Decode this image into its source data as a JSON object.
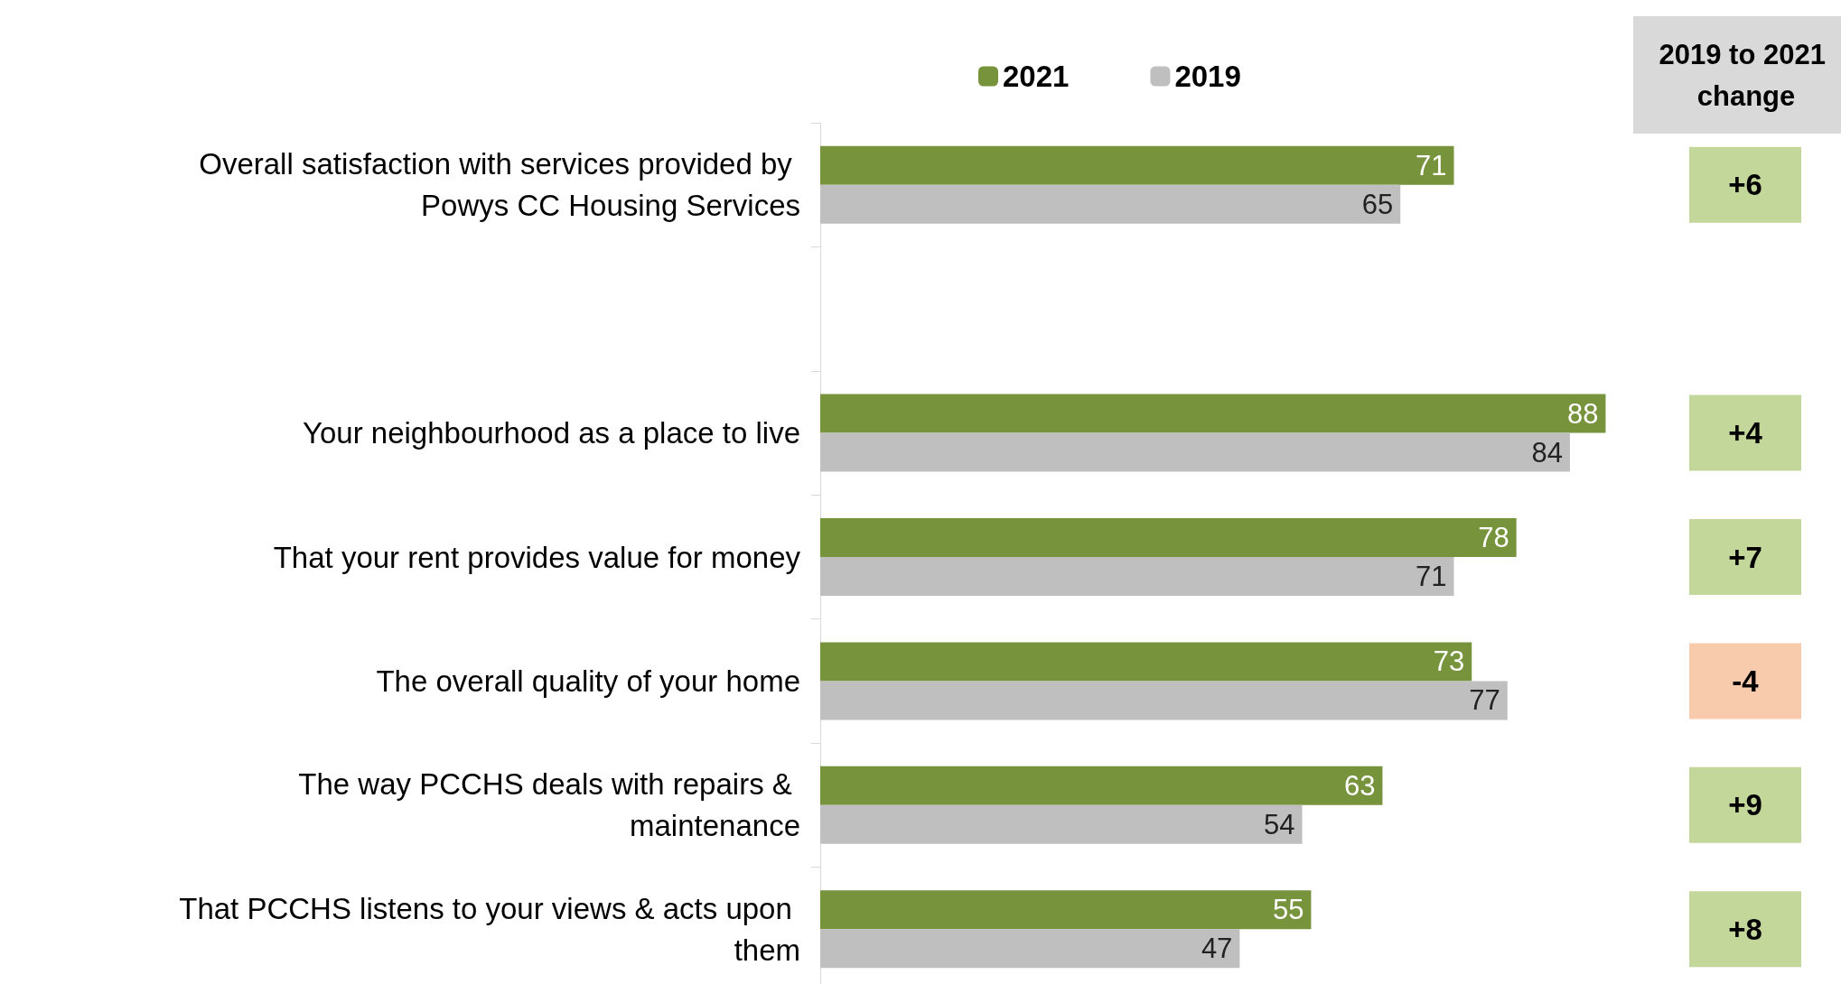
{
  "chart_data": {
    "type": "bar",
    "orientation": "horizontal",
    "categories": [
      "Overall satisfaction with services provided by Powys CC Housing Services",
      null,
      "Your neighbourhood as a place to live",
      "That your rent provides value for money",
      "The overall quality of your home",
      "The way PCCHS deals with repairs & maintenance",
      "That PCCHS listens to your views & acts upon them"
    ],
    "series": [
      {
        "name": "2021",
        "color": "#77933c",
        "values": [
          71,
          null,
          88,
          78,
          73,
          63,
          55
        ]
      },
      {
        "name": "2019",
        "color": "#bfbfbf",
        "values": [
          65,
          null,
          84,
          71,
          77,
          54,
          47
        ]
      }
    ],
    "data_labels": true,
    "legend": "top",
    "tick_labels": "y",
    "annotations": [
      "2019 to 2021 change",
      "+6",
      "+4",
      "+7",
      "-4",
      "+9",
      "+8"
    ]
  }
}
